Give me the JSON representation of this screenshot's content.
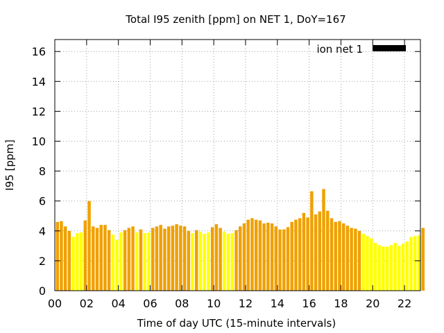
{
  "chart_data": {
    "type": "bar",
    "title": "Total I95 zenith [ppm] on NET 1, DoY=167",
    "xlabel": "Time of day UTC (15-minute intervals)",
    "ylabel": "I95 [ppm]",
    "xlim": [
      0,
      23
    ],
    "ylim": [
      0,
      16.8
    ],
    "x_ticks": [
      "00",
      "02",
      "04",
      "06",
      "08",
      "10",
      "12",
      "14",
      "16",
      "18",
      "20",
      "22"
    ],
    "y_ticks": [
      "0",
      "2",
      "4",
      "6",
      "8",
      "10",
      "12",
      "14",
      "16"
    ],
    "grid": true,
    "legend_position": "top-right",
    "colors": {
      "high": "#f0a000",
      "low": "#ffff00",
      "grid": "#a0a0a0",
      "legend_swatch": "#000000"
    },
    "color_rule": "values of about 4 ppm and above are orange, lower values are yellow",
    "series": [
      {
        "name": "ion net 1",
        "interval_hours": 0.25,
        "values": [
          4.6,
          4.65,
          4.3,
          4.0,
          3.6,
          3.85,
          3.9,
          4.7,
          6.0,
          4.3,
          4.2,
          4.4,
          4.4,
          4.05,
          3.75,
          3.4,
          3.9,
          4.05,
          4.2,
          4.3,
          3.9,
          4.1,
          3.85,
          3.9,
          4.2,
          4.3,
          4.4,
          4.15,
          4.3,
          4.35,
          4.45,
          4.35,
          4.3,
          4.0,
          3.85,
          4.05,
          3.95,
          3.8,
          3.9,
          4.25,
          4.45,
          4.2,
          3.95,
          3.8,
          3.85,
          4.05,
          4.3,
          4.5,
          4.75,
          4.85,
          4.75,
          4.7,
          4.5,
          4.55,
          4.5,
          4.3,
          4.1,
          4.1,
          4.25,
          4.6,
          4.75,
          4.85,
          5.2,
          4.9,
          6.65,
          5.1,
          5.3,
          6.8,
          5.35,
          4.85,
          4.6,
          4.65,
          4.5,
          4.35,
          4.2,
          4.15,
          4.0,
          3.8,
          3.65,
          3.5,
          3.2,
          3.05,
          2.95,
          2.95,
          3.05,
          3.2,
          3.0,
          3.15,
          3.3,
          3.6,
          3.65,
          3.7,
          4.2
        ]
      }
    ]
  }
}
